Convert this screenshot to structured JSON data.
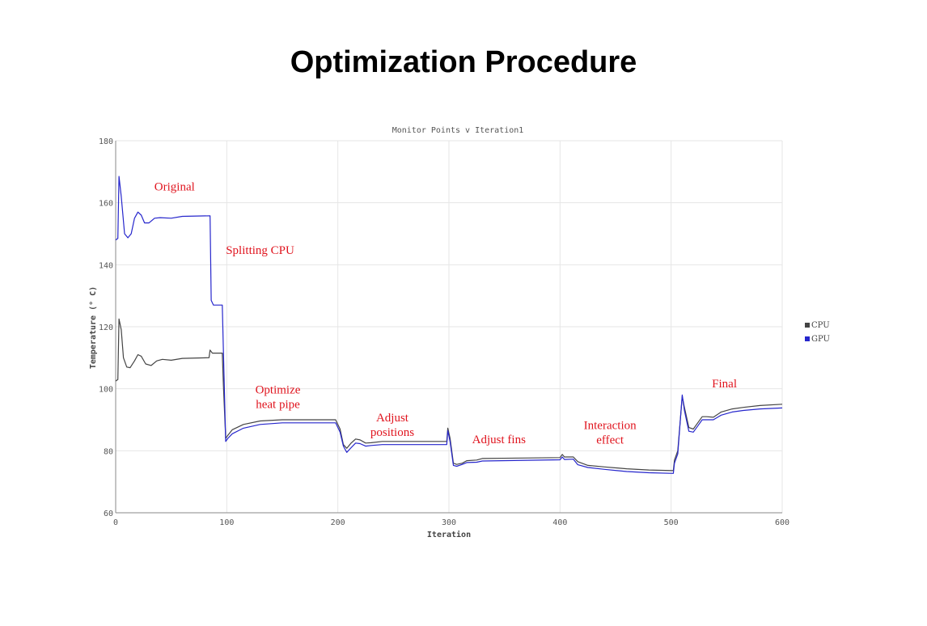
{
  "slide_title": "Optimization Procedure",
  "chart_data": {
    "type": "line",
    "title": "Monitor Points v Iteration1",
    "xlabel": "Iteration",
    "ylabel": "Temperature (° C)",
    "xlim": [
      0,
      600
    ],
    "ylim": [
      60,
      180
    ],
    "xticks": [
      0,
      100,
      200,
      300,
      400,
      500,
      600
    ],
    "yticks": [
      60,
      80,
      100,
      120,
      140,
      160,
      180
    ],
    "grid": true,
    "legend_position": "right",
    "series": [
      {
        "name": "CPU",
        "color": "#444444",
        "points": [
          [
            0,
            102.5
          ],
          [
            2,
            103
          ],
          [
            3,
            122.5
          ],
          [
            5,
            119
          ],
          [
            7,
            110
          ],
          [
            10,
            107
          ],
          [
            13,
            106.8
          ],
          [
            17,
            109
          ],
          [
            20,
            111
          ],
          [
            23,
            110.5
          ],
          [
            27,
            108
          ],
          [
            32,
            107.5
          ],
          [
            37,
            109
          ],
          [
            42,
            109.5
          ],
          [
            50,
            109.2
          ],
          [
            60,
            109.8
          ],
          [
            84,
            110
          ],
          [
            85,
            112.5
          ],
          [
            87,
            111.5
          ],
          [
            96,
            111.5
          ],
          [
            97,
            101
          ],
          [
            99,
            84
          ],
          [
            101,
            85
          ],
          [
            105,
            86.8
          ],
          [
            115,
            88.5
          ],
          [
            130,
            89.6
          ],
          [
            150,
            90
          ],
          [
            198,
            90
          ],
          [
            202,
            87
          ],
          [
            205,
            82
          ],
          [
            208,
            80.8
          ],
          [
            212,
            82.5
          ],
          [
            216,
            83.8
          ],
          [
            220,
            83.5
          ],
          [
            225,
            82.5
          ],
          [
            230,
            82.6
          ],
          [
            240,
            83
          ],
          [
            298,
            83
          ],
          [
            299,
            87.3
          ],
          [
            301,
            84
          ],
          [
            304,
            76
          ],
          [
            307,
            75.6
          ],
          [
            312,
            76
          ],
          [
            316,
            76.8
          ],
          [
            325,
            77
          ],
          [
            330,
            77.5
          ],
          [
            400,
            77.8
          ],
          [
            402,
            78.8
          ],
          [
            404,
            78
          ],
          [
            412,
            78
          ],
          [
            416,
            76.5
          ],
          [
            425,
            75.3
          ],
          [
            440,
            74.8
          ],
          [
            460,
            74.2
          ],
          [
            480,
            73.8
          ],
          [
            502,
            73.6
          ],
          [
            503,
            77
          ],
          [
            506,
            80
          ],
          [
            510,
            97.5
          ],
          [
            512,
            94
          ],
          [
            516,
            87.5
          ],
          [
            520,
            87
          ],
          [
            524,
            89
          ],
          [
            528,
            91
          ],
          [
            532,
            91
          ],
          [
            538,
            90.8
          ],
          [
            545,
            92.5
          ],
          [
            555,
            93.5
          ],
          [
            565,
            94
          ],
          [
            580,
            94.6
          ],
          [
            600,
            95
          ]
        ]
      },
      {
        "name": "GPU",
        "color": "#2626cc",
        "points": [
          [
            0,
            148
          ],
          [
            2,
            148.5
          ],
          [
            3,
            168.5
          ],
          [
            5,
            162
          ],
          [
            8,
            150
          ],
          [
            11,
            148.7
          ],
          [
            14,
            150
          ],
          [
            17,
            155
          ],
          [
            20,
            157
          ],
          [
            23,
            156
          ],
          [
            26,
            153.5
          ],
          [
            30,
            153.5
          ],
          [
            35,
            155
          ],
          [
            40,
            155.2
          ],
          [
            50,
            155
          ],
          [
            60,
            155.6
          ],
          [
            85,
            155.8
          ],
          [
            86,
            128.5
          ],
          [
            88,
            127
          ],
          [
            96,
            127
          ],
          [
            97,
            112
          ],
          [
            99,
            83
          ],
          [
            101,
            84
          ],
          [
            105,
            85.5
          ],
          [
            115,
            87.3
          ],
          [
            130,
            88.5
          ],
          [
            150,
            89
          ],
          [
            198,
            89
          ],
          [
            202,
            86
          ],
          [
            205,
            81.5
          ],
          [
            208,
            79.5
          ],
          [
            212,
            81
          ],
          [
            216,
            82.5
          ],
          [
            220,
            82.3
          ],
          [
            225,
            81.5
          ],
          [
            230,
            81.7
          ],
          [
            240,
            82
          ],
          [
            298,
            82
          ],
          [
            299,
            86.5
          ],
          [
            301,
            83
          ],
          [
            304,
            75.3
          ],
          [
            307,
            75
          ],
          [
            312,
            75.6
          ],
          [
            316,
            76.2
          ],
          [
            325,
            76.3
          ],
          [
            330,
            76.7
          ],
          [
            400,
            77.1
          ],
          [
            402,
            78
          ],
          [
            404,
            77.2
          ],
          [
            412,
            77.3
          ],
          [
            416,
            75.5
          ],
          [
            425,
            74.6
          ],
          [
            440,
            74
          ],
          [
            460,
            73.3
          ],
          [
            480,
            72.9
          ],
          [
            502,
            72.7
          ],
          [
            503,
            76
          ],
          [
            506,
            79
          ],
          [
            510,
            98
          ],
          [
            512,
            93
          ],
          [
            516,
            86.3
          ],
          [
            520,
            86
          ],
          [
            524,
            88
          ],
          [
            528,
            90
          ],
          [
            532,
            90
          ],
          [
            538,
            90
          ],
          [
            545,
            91.5
          ],
          [
            555,
            92.5
          ],
          [
            565,
            93
          ],
          [
            580,
            93.5
          ],
          [
            600,
            93.8
          ]
        ]
      }
    ],
    "annotations": [
      {
        "lines": [
          "Original"
        ],
        "x": 53,
        "y": 164,
        "color": "#e0141e"
      },
      {
        "lines": [
          "Splitting CPU"
        ],
        "x": 130,
        "y": 143.5,
        "color": "#e0141e"
      },
      {
        "lines": [
          "Optimize",
          "heat pipe"
        ],
        "x": 146,
        "y": 98.5,
        "color": "#e0141e"
      },
      {
        "lines": [
          "Adjust",
          "positions"
        ],
        "x": 249,
        "y": 89.5,
        "color": "#e0141e"
      },
      {
        "lines": [
          "Adjust fins"
        ],
        "x": 345,
        "y": 82.5,
        "color": "#e0141e"
      },
      {
        "lines": [
          "Interaction",
          "effect"
        ],
        "x": 445,
        "y": 87,
        "color": "#e0141e"
      },
      {
        "lines": [
          "Final"
        ],
        "x": 548,
        "y": 100.5,
        "color": "#e0141e"
      }
    ]
  }
}
